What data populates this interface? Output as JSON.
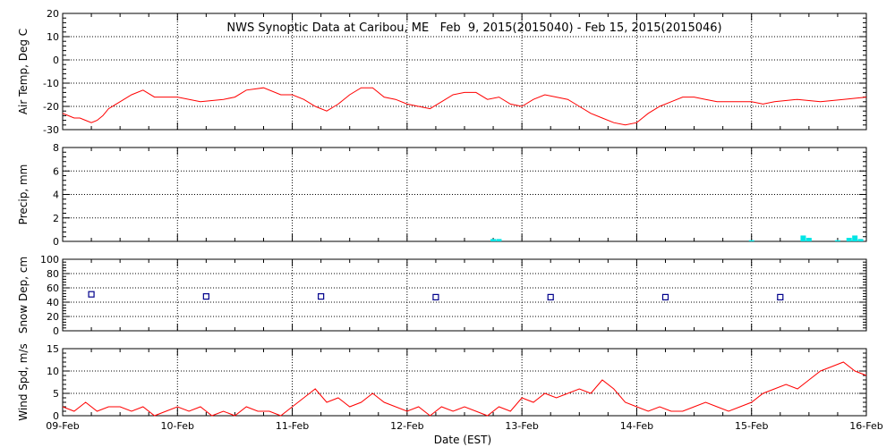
{
  "title": "NWS Synoptic Data at Caribou, ME   Feb  9, 2015(2015040) - Feb 15, 2015(2015046)",
  "x_axis": {
    "label": "Date (EST)",
    "ticks": [
      "09-Feb",
      "10-Feb",
      "11-Feb",
      "12-Feb",
      "13-Feb",
      "14-Feb",
      "15-Feb",
      "16-Feb"
    ]
  },
  "colors": {
    "line": "#ff0000",
    "precip": "#00e5e5",
    "snow": "#00008b",
    "grid": "#000000"
  },
  "chart_data": [
    {
      "type": "line",
      "title": "NWS Synoptic Data at Caribou, ME   Feb  9, 2015(2015040) - Feb 15, 2015(2015046)",
      "ylabel": "Air Temp, Deg C",
      "ylim": [
        -30,
        20
      ],
      "yticks": [
        -30,
        -20,
        -10,
        0,
        10,
        20
      ],
      "xlim": [
        0,
        7
      ],
      "x": [
        0,
        0.05,
        0.1,
        0.15,
        0.2,
        0.25,
        0.3,
        0.35,
        0.4,
        0.5,
        0.6,
        0.7,
        0.8,
        1.0,
        1.2,
        1.4,
        1.5,
        1.6,
        1.75,
        1.9,
        2.0,
        2.1,
        2.2,
        2.3,
        2.4,
        2.5,
        2.6,
        2.7,
        2.8,
        2.9,
        3.0,
        3.1,
        3.2,
        3.3,
        3.4,
        3.5,
        3.6,
        3.7,
        3.8,
        3.9,
        4.0,
        4.1,
        4.2,
        4.3,
        4.4,
        4.5,
        4.6,
        4.7,
        4.8,
        4.9,
        5.0,
        5.05,
        5.1,
        5.2,
        5.3,
        5.4,
        5.5,
        5.6,
        5.7,
        5.8,
        5.9,
        6.0,
        6.1,
        6.2,
        6.4,
        6.6,
        6.8,
        7.0
      ],
      "series": [
        {
          "values": [
            -23,
            -24,
            -25,
            -25,
            -26,
            -27,
            -26,
            -24,
            -21,
            -18,
            -15,
            -13,
            -16,
            -16,
            -18,
            -17,
            -16,
            -13,
            -12,
            -15,
            -15,
            -17,
            -20,
            -22,
            -19,
            -15,
            -12,
            -12,
            -16,
            -17,
            -19,
            -20,
            -21,
            -18,
            -15,
            -14,
            -14,
            -17,
            -16,
            -19,
            -20,
            -17,
            -15,
            -16,
            -17,
            -20,
            -23,
            -25,
            -27,
            -28,
            -27,
            -25,
            -23,
            -20,
            -18,
            -16,
            -16,
            -17,
            -18,
            -18,
            -18,
            -18,
            -19,
            -18,
            -17,
            -18,
            -17,
            -16
          ]
        }
      ]
    },
    {
      "type": "bar",
      "ylabel": "Precip, mm",
      "ylim": [
        0,
        8
      ],
      "yticks": [
        0,
        2,
        4,
        6,
        8
      ],
      "xlim": [
        0,
        7
      ],
      "x": [
        3.75,
        3.8,
        6.0,
        6.45,
        6.5,
        6.75,
        6.85,
        6.9,
        6.95
      ],
      "values": [
        0.2,
        0.2,
        0.1,
        0.5,
        0.3,
        0.1,
        0.3,
        0.5,
        0.2
      ]
    },
    {
      "type": "scatter",
      "ylabel": "Snow Dep, cm",
      "ylim": [
        0,
        100
      ],
      "yticks": [
        0,
        20,
        40,
        60,
        80,
        100
      ],
      "xlim": [
        0,
        7
      ],
      "x": [
        0.25,
        1.25,
        2.25,
        3.25,
        4.25,
        5.25,
        6.25
      ],
      "values": [
        51,
        48,
        48,
        47,
        47,
        47,
        47
      ]
    },
    {
      "type": "line",
      "ylabel": "Wind Spd, m/s",
      "ylim": [
        0,
        15
      ],
      "yticks": [
        0,
        5,
        10,
        15
      ],
      "xlim": [
        0,
        7
      ],
      "x": [
        0,
        0.1,
        0.2,
        0.3,
        0.4,
        0.5,
        0.6,
        0.7,
        0.8,
        0.9,
        1.0,
        1.1,
        1.2,
        1.3,
        1.4,
        1.5,
        1.6,
        1.7,
        1.8,
        1.9,
        2.0,
        2.1,
        2.2,
        2.3,
        2.4,
        2.5,
        2.6,
        2.7,
        2.8,
        2.9,
        3.0,
        3.1,
        3.2,
        3.3,
        3.4,
        3.5,
        3.6,
        3.7,
        3.8,
        3.9,
        4.0,
        4.1,
        4.2,
        4.3,
        4.4,
        4.5,
        4.6,
        4.7,
        4.8,
        4.9,
        5.0,
        5.1,
        5.2,
        5.3,
        5.4,
        5.5,
        5.6,
        5.7,
        5.8,
        5.9,
        6.0,
        6.1,
        6.2,
        6.3,
        6.4,
        6.5,
        6.6,
        6.7,
        6.8,
        6.9,
        7.0
      ],
      "series": [
        {
          "values": [
            2,
            1,
            3,
            1,
            2,
            2,
            1,
            2,
            0,
            1,
            2,
            1,
            2,
            0,
            1,
            0,
            2,
            1,
            1,
            0,
            2,
            4,
            6,
            3,
            4,
            2,
            3,
            5,
            3,
            2,
            1,
            2,
            0,
            2,
            1,
            2,
            1,
            0,
            2,
            1,
            4,
            3,
            5,
            4,
            5,
            6,
            5,
            8,
            6,
            3,
            2,
            1,
            2,
            1,
            1,
            2,
            3,
            2,
            1,
            2,
            3,
            5,
            6,
            7,
            6,
            8,
            10,
            11,
            12,
            10,
            9
          ]
        }
      ]
    }
  ]
}
